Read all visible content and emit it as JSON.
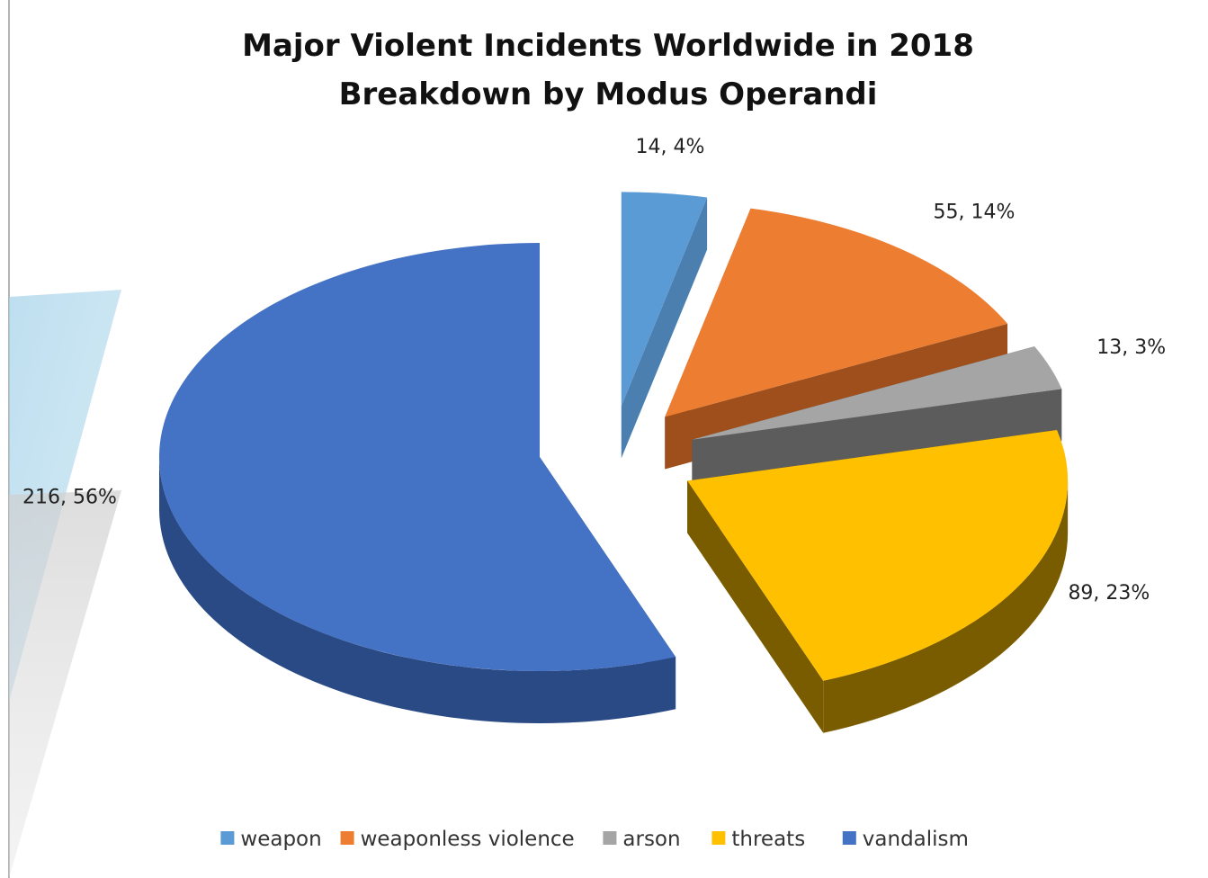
{
  "chart_data": {
    "type": "pie",
    "title_lines": [
      "Major Violent Incidents Worldwide in 2018",
      "Breakdown by Modus Operandi"
    ],
    "series": [
      {
        "name": "weapon",
        "value": 14,
        "percent": 4,
        "label": "14, 4%",
        "color": "#5B9BD5",
        "side_color": "#4A7FB0",
        "exploded": true
      },
      {
        "name": "weaponless violence",
        "value": 55,
        "percent": 14,
        "label": "55, 14%",
        "color": "#ED7D31",
        "side_color": "#9E4F1C",
        "exploded": true
      },
      {
        "name": "arson",
        "value": 13,
        "percent": 3,
        "label": "13, 3%",
        "color": "#A5A5A5",
        "side_color": "#5C5C5C",
        "exploded": true
      },
      {
        "name": "threats",
        "value": 89,
        "percent": 23,
        "label": "89, 23%",
        "color": "#FFC000",
        "side_color": "#7A5C00",
        "exploded": true
      },
      {
        "name": "vandalism",
        "value": 216,
        "percent": 56,
        "label": "216, 56%",
        "color": "#4472C4",
        "side_color": "#2A4A85",
        "exploded": false
      }
    ],
    "style": "3d-exploded-pie",
    "legend_position": "bottom"
  }
}
